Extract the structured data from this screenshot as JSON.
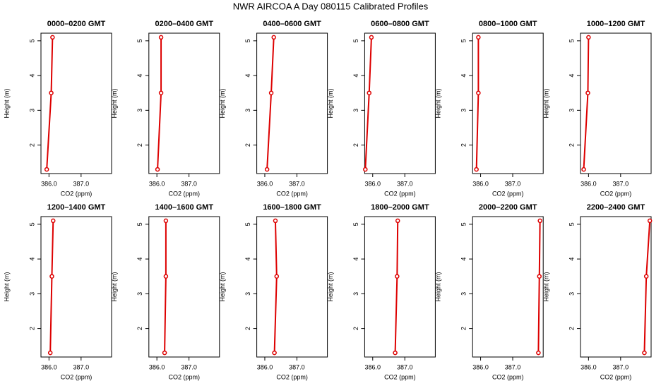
{
  "title": "NWR AIRCOA A  Day 080115  Calibrated Profiles",
  "chart_data": [
    {
      "type": "line",
      "title": "0000–0200 GMT",
      "xlabel": "CO2 (ppm)",
      "ylabel": "Height (m)",
      "color": "#dd0000",
      "x": [
        385.93,
        386.07,
        386.11
      ],
      "values": [
        1.3,
        3.5,
        5.1
      ],
      "xlim": [
        385.75,
        387.95
      ],
      "ylim": [
        1.18,
        5.22
      ],
      "xticks": [
        {
          "value": 386,
          "label": "386.0"
        },
        {
          "value": 387,
          "label": "387.0"
        }
      ],
      "yticks": [
        2,
        3,
        4,
        5
      ]
    },
    {
      "type": "line",
      "title": "0200–0400 GMT",
      "xlabel": "CO2 (ppm)",
      "ylabel": "Height (m)",
      "color": "#dd0000",
      "x": [
        386.02,
        386.13,
        386.13
      ],
      "values": [
        1.3,
        3.5,
        5.1
      ],
      "xlim": [
        385.75,
        387.95
      ],
      "ylim": [
        1.18,
        5.22
      ],
      "xticks": [
        {
          "value": 386,
          "label": "386.0"
        },
        {
          "value": 387,
          "label": "387.0"
        }
      ],
      "yticks": [
        2,
        3,
        4,
        5
      ]
    },
    {
      "type": "line",
      "title": "0400–0600 GMT",
      "xlabel": "CO2 (ppm)",
      "ylabel": "Height (m)",
      "color": "#dd0000",
      "x": [
        386.07,
        386.2,
        386.28
      ],
      "values": [
        1.3,
        3.5,
        5.1
      ],
      "xlim": [
        385.75,
        387.95
      ],
      "ylim": [
        1.18,
        5.22
      ],
      "xticks": [
        {
          "value": 386,
          "label": "386.0"
        },
        {
          "value": 387,
          "label": "387.0"
        }
      ],
      "yticks": [
        2,
        3,
        4,
        5
      ]
    },
    {
      "type": "line",
      "title": "0600–0800 GMT",
      "xlabel": "CO2 (ppm)",
      "ylabel": "Height (m)",
      "color": "#dd0000",
      "x": [
        385.77,
        385.89,
        385.96
      ],
      "values": [
        1.3,
        3.5,
        5.1
      ],
      "xlim": [
        385.75,
        387.95
      ],
      "ylim": [
        1.18,
        5.22
      ],
      "xticks": [
        {
          "value": 386,
          "label": "386.0"
        },
        {
          "value": 387,
          "label": "387.0"
        }
      ],
      "yticks": [
        2,
        3,
        4,
        5
      ]
    },
    {
      "type": "line",
      "title": "0800–1000 GMT",
      "xlabel": "CO2 (ppm)",
      "ylabel": "Height (m)",
      "color": "#dd0000",
      "x": [
        385.87,
        385.93,
        385.93
      ],
      "values": [
        1.3,
        3.5,
        5.1
      ],
      "xlim": [
        385.75,
        387.95
      ],
      "ylim": [
        1.18,
        5.22
      ],
      "xticks": [
        {
          "value": 386,
          "label": "386.0"
        },
        {
          "value": 387,
          "label": "387.0"
        }
      ],
      "yticks": [
        2,
        3,
        4,
        5
      ]
    },
    {
      "type": "line",
      "title": "1000–1200 GMT",
      "xlabel": "CO2 (ppm)",
      "ylabel": "Height (m)",
      "color": "#dd0000",
      "x": [
        385.85,
        385.98,
        386.0
      ],
      "values": [
        1.3,
        3.5,
        5.1
      ],
      "xlim": [
        385.75,
        387.95
      ],
      "ylim": [
        1.18,
        5.22
      ],
      "xticks": [
        {
          "value": 386,
          "label": "386.0"
        },
        {
          "value": 387,
          "label": "387.0"
        }
      ],
      "yticks": [
        2,
        3,
        4,
        5
      ]
    },
    {
      "type": "line",
      "title": "1200–1400 GMT",
      "xlabel": "CO2 (ppm)",
      "ylabel": "Height (m)",
      "color": "#dd0000",
      "x": [
        386.04,
        386.09,
        386.13
      ],
      "values": [
        1.3,
        3.5,
        5.1
      ],
      "xlim": [
        385.75,
        387.95
      ],
      "ylim": [
        1.18,
        5.22
      ],
      "xticks": [
        {
          "value": 386,
          "label": "386.0"
        },
        {
          "value": 387,
          "label": "387.0"
        }
      ],
      "yticks": [
        2,
        3,
        4,
        5
      ]
    },
    {
      "type": "line",
      "title": "1400–1600 GMT",
      "xlabel": "CO2 (ppm)",
      "ylabel": "Height (m)",
      "color": "#dd0000",
      "x": [
        386.24,
        386.28,
        386.28
      ],
      "values": [
        1.3,
        3.5,
        5.1
      ],
      "xlim": [
        385.75,
        387.95
      ],
      "ylim": [
        1.18,
        5.22
      ],
      "xticks": [
        {
          "value": 386,
          "label": "386.0"
        },
        {
          "value": 387,
          "label": "387.0"
        }
      ],
      "yticks": [
        2,
        3,
        4,
        5
      ]
    },
    {
      "type": "line",
      "title": "1600–1800 GMT",
      "xlabel": "CO2 (ppm)",
      "ylabel": "Height (m)",
      "color": "#dd0000",
      "x": [
        386.3,
        386.37,
        386.33
      ],
      "values": [
        1.3,
        3.5,
        5.1
      ],
      "xlim": [
        385.75,
        387.95
      ],
      "ylim": [
        1.18,
        5.22
      ],
      "xticks": [
        {
          "value": 386,
          "label": "386.0"
        },
        {
          "value": 387,
          "label": "387.0"
        }
      ],
      "yticks": [
        2,
        3,
        4,
        5
      ]
    },
    {
      "type": "line",
      "title": "1800–2000 GMT",
      "xlabel": "CO2 (ppm)",
      "ylabel": "Height (m)",
      "color": "#dd0000",
      "x": [
        386.7,
        386.76,
        386.78
      ],
      "values": [
        1.3,
        3.5,
        5.1
      ],
      "xlim": [
        385.75,
        387.95
      ],
      "ylim": [
        1.18,
        5.22
      ],
      "xticks": [
        {
          "value": 386,
          "label": "386.0"
        },
        {
          "value": 387,
          "label": "387.0"
        }
      ],
      "yticks": [
        2,
        3,
        4,
        5
      ]
    },
    {
      "type": "line",
      "title": "2000–2200 GMT",
      "xlabel": "CO2 (ppm)",
      "ylabel": "Height (m)",
      "color": "#dd0000",
      "x": [
        387.8,
        387.83,
        387.85
      ],
      "values": [
        1.3,
        3.5,
        5.1
      ],
      "xlim": [
        385.75,
        387.95
      ],
      "ylim": [
        1.18,
        5.22
      ],
      "xticks": [
        {
          "value": 386,
          "label": "386.0"
        },
        {
          "value": 387,
          "label": "387.0"
        }
      ],
      "yticks": [
        2,
        3,
        4,
        5
      ]
    },
    {
      "type": "line",
      "title": "2200–2400 GMT",
      "xlabel": "CO2 (ppm)",
      "ylabel": "Height (m)",
      "color": "#dd0000",
      "x": [
        387.74,
        387.8,
        387.91
      ],
      "values": [
        1.3,
        3.5,
        5.1
      ],
      "xlim": [
        385.75,
        387.95
      ],
      "ylim": [
        1.18,
        5.22
      ],
      "xticks": [
        {
          "value": 386,
          "label": "386.0"
        },
        {
          "value": 387,
          "label": "387.0"
        }
      ],
      "yticks": [
        2,
        3,
        4,
        5
      ]
    }
  ]
}
